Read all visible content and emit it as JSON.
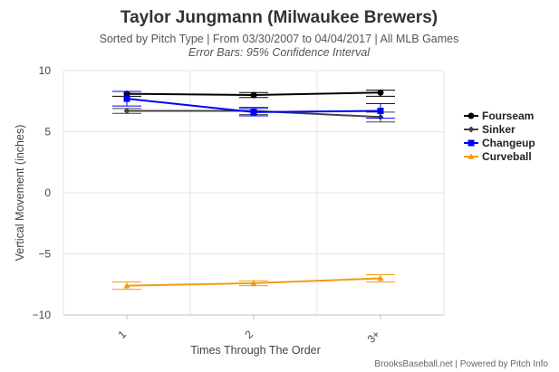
{
  "chart_data": {
    "type": "line",
    "title": "Taylor Jungmann (Milwaukee Brewers)",
    "subtitle": "Sorted by Pitch Type | From 03/30/2007 to 04/04/2017 | All MLB Games",
    "note": "Error Bars: 95% Confidence Interval",
    "xlabel": "Times Through The Order",
    "ylabel": "Vertical Movement (inches)",
    "categories": [
      "1",
      "2",
      "3+"
    ],
    "ylim": [
      -10,
      10
    ],
    "yticks": [
      {
        "value": 10,
        "label": "10"
      },
      {
        "value": 5,
        "label": "5"
      },
      {
        "value": 0,
        "label": "0"
      },
      {
        "value": -5,
        "label": "−5"
      },
      {
        "value": -10,
        "label": "−10"
      }
    ],
    "grid": true,
    "legend_position": "right",
    "credit": "BrooksBaseball.net | Powered by Pitch Info",
    "series": [
      {
        "name": "Fourseam",
        "color": "#000000",
        "marker": "circle",
        "values": [
          8.1,
          8.0,
          8.2
        ],
        "err_low": [
          7.9,
          7.8,
          7.9
        ],
        "err_high": [
          8.3,
          8.2,
          8.4
        ]
      },
      {
        "name": "Sinker",
        "color": "#444444",
        "marker": "diamond",
        "values": [
          6.7,
          6.7,
          6.2
        ],
        "err_low": [
          6.5,
          6.4,
          5.8
        ],
        "err_high": [
          6.9,
          7.0,
          6.6
        ]
      },
      {
        "name": "Changeup",
        "color": "#0000ff",
        "marker": "square",
        "values": [
          7.7,
          6.6,
          6.7
        ],
        "err_low": [
          7.1,
          6.3,
          6.1
        ],
        "err_high": [
          8.3,
          6.9,
          7.3
        ]
      },
      {
        "name": "Curveball",
        "color": "#f39c12",
        "marker": "triangle",
        "values": [
          -7.6,
          -7.4,
          -7.0
        ],
        "err_low": [
          -7.9,
          -7.6,
          -7.3
        ],
        "err_high": [
          -7.3,
          -7.2,
          -6.7
        ]
      }
    ]
  }
}
